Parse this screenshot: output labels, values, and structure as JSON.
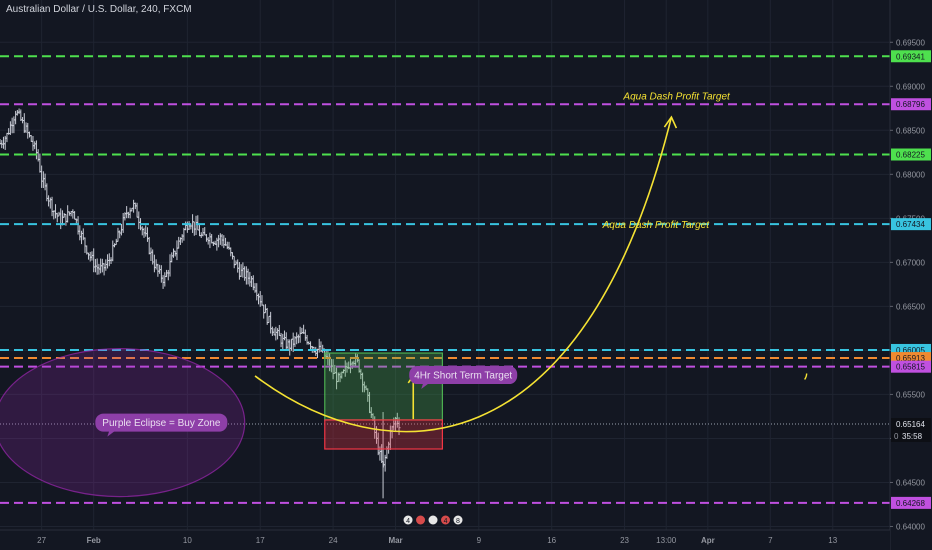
{
  "header": {
    "title": "Australian Dollar / U.S. Dollar, 240, FXCM"
  },
  "chart_data": {
    "type": "candlestick",
    "ylim": [
      0.6396,
      0.6998
    ],
    "price_ticks": [
      "0.69500",
      "0.69000",
      "0.68500",
      "0.68000",
      "0.67500",
      "0.67000",
      "0.66500",
      "0.66000",
      "0.65500",
      "0.65000",
      "0.64500",
      "0.64000"
    ],
    "time_ticks": [
      {
        "label": "27",
        "x": 0
      },
      {
        "label": "Feb",
        "x": 5
      },
      {
        "label": "10",
        "x": 14
      },
      {
        "label": "17",
        "x": 21
      },
      {
        "label": "24",
        "x": 28
      },
      {
        "label": "Mar",
        "x": 34
      },
      {
        "label": "9",
        "x": 42
      },
      {
        "label": "16",
        "x": 49
      },
      {
        "label": "23",
        "x": 56
      },
      {
        "label": "13:00",
        "x": 60
      },
      {
        "label": "Apr",
        "x": 64
      },
      {
        "label": "7",
        "x": 70
      },
      {
        "label": "13",
        "x": 76
      }
    ],
    "xlim": [
      -4,
      81.5
    ],
    "close_path": [
      [
        -4,
        0.6835
      ],
      [
        -3.3,
        0.6845
      ],
      [
        -2.5,
        0.6872
      ],
      [
        -1.7,
        0.6855
      ],
      [
        -1,
        0.6838
      ],
      [
        -0.4,
        0.6822
      ],
      [
        0,
        0.6795
      ],
      [
        0.6,
        0.6775
      ],
      [
        1.2,
        0.6758
      ],
      [
        1.8,
        0.6748
      ],
      [
        2.4,
        0.6752
      ],
      [
        3,
        0.676
      ],
      [
        3.5,
        0.674
      ],
      [
        4,
        0.6725
      ],
      [
        4.6,
        0.6708
      ],
      [
        5.2,
        0.6695
      ],
      [
        5.8,
        0.6692
      ],
      [
        6.4,
        0.67
      ],
      [
        7,
        0.6718
      ],
      [
        7.6,
        0.6738
      ],
      [
        8.2,
        0.6758
      ],
      [
        8.8,
        0.6765
      ],
      [
        9.4,
        0.6748
      ],
      [
        10,
        0.6728
      ],
      [
        10.6,
        0.6705
      ],
      [
        11.2,
        0.6688
      ],
      [
        11.8,
        0.668
      ],
      [
        12.4,
        0.67
      ],
      [
        13,
        0.6718
      ],
      [
        13.6,
        0.6735
      ],
      [
        14.2,
        0.6748
      ],
      [
        14.8,
        0.674
      ],
      [
        15.4,
        0.6728
      ],
      [
        16,
        0.673
      ],
      [
        16.6,
        0.6725
      ],
      [
        17.2,
        0.6728
      ],
      [
        17.8,
        0.6718
      ],
      [
        18.4,
        0.6702
      ],
      [
        19,
        0.669
      ],
      [
        19.6,
        0.6685
      ],
      [
        20.2,
        0.668
      ],
      [
        20.8,
        0.6665
      ],
      [
        21.4,
        0.6645
      ],
      [
        22,
        0.6628
      ],
      [
        22.6,
        0.6618
      ],
      [
        23.2,
        0.661
      ],
      [
        23.8,
        0.6605
      ],
      [
        24.4,
        0.6612
      ],
      [
        25,
        0.6618
      ],
      [
        25.6,
        0.6612
      ],
      [
        26.2,
        0.6602
      ],
      [
        26.8,
        0.66
      ],
      [
        27.4,
        0.659
      ],
      [
        28,
        0.6575
      ],
      [
        28.6,
        0.6565
      ],
      [
        29.2,
        0.6578
      ],
      [
        29.8,
        0.6592
      ],
      [
        30.4,
        0.6585
      ],
      [
        31,
        0.656
      ],
      [
        31.6,
        0.653
      ],
      [
        32.2,
        0.6495
      ],
      [
        32.8,
        0.6465
      ],
      [
        33.4,
        0.6502
      ],
      [
        34,
        0.6522
      ],
      [
        34.4,
        0.6516
      ]
    ],
    "last_price": "0.65164",
    "countdown": "35:58",
    "price_badge_partial": "0",
    "levels": [
      {
        "value": 0.69341,
        "label": "0.69341",
        "color": "#4ee04e"
      },
      {
        "value": 0.68796,
        "label": "0.68796",
        "color": "#c050e0"
      },
      {
        "value": 0.68225,
        "label": "0.68225",
        "color": "#4ee04e"
      },
      {
        "value": 0.67434,
        "label": "0.67434",
        "color": "#38c4e0"
      },
      {
        "value": 0.66005,
        "label": "0.66005",
        "color": "#38c4e0"
      },
      {
        "value": 0.65913,
        "label": "0.65913",
        "color": "#f08a30"
      },
      {
        "value": 0.65815,
        "label": "0.65815",
        "color": "#c050e0"
      },
      {
        "value": 0.64268,
        "label": "0.64268",
        "color": "#c050e0"
      }
    ],
    "zones": {
      "green": {
        "x0": 27.2,
        "x1": 38.5,
        "top": 0.6597,
        "bottom": 0.6521,
        "color": "#4caf50"
      },
      "red": {
        "x0": 27.2,
        "x1": 38.5,
        "top": 0.6521,
        "bottom": 0.6488,
        "color": "#f23645"
      }
    },
    "ellipse": {
      "x": 7.5,
      "y": 0.6518,
      "color": "#9c27b0"
    },
    "annotations": [
      {
        "text": "Purple Eclipse = Buy Zone",
        "x": 11.5,
        "y": 0.6518
      },
      {
        "text": "4Hr Short Term Target",
        "x": 40.5,
        "y": 0.6572
      },
      {
        "text": "Aqua Dash Profit Target",
        "x": 59,
        "y": 0.6743
      },
      {
        "text": "Aqua Dash Profit Target",
        "x": 61,
        "y": 0.6889
      }
    ],
    "arrow_curve": [
      [
        20.5,
        0.6571
      ],
      [
        33,
        0.646
      ],
      [
        52,
        0.646
      ],
      [
        60.5,
        0.6865
      ]
    ],
    "event_badges": [
      "4",
      "",
      "",
      "4",
      "8"
    ]
  }
}
